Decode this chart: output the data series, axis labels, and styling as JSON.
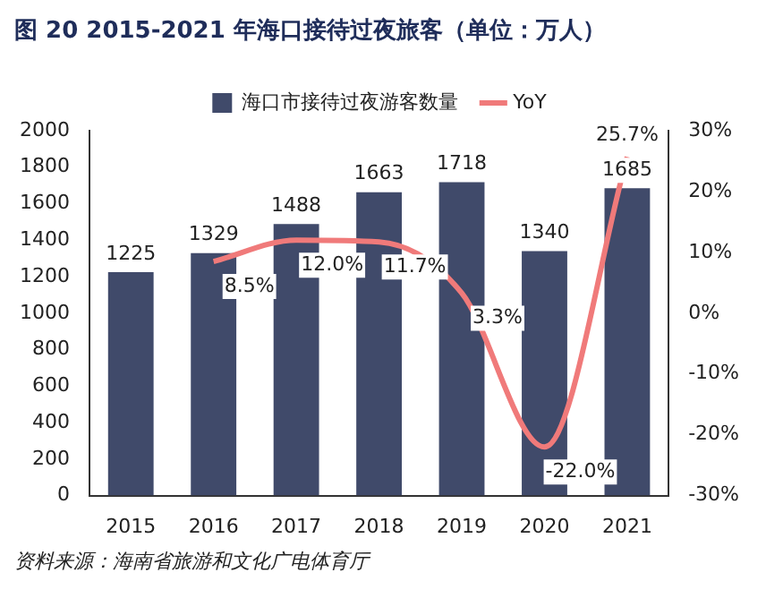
{
  "chart_data": {
    "type": "bar",
    "title": "图 20 2015-2021 年海口接待过夜旅客（单位：万人）",
    "categories": [
      "2015",
      "2016",
      "2017",
      "2018",
      "2019",
      "2020",
      "2021"
    ],
    "series": [
      {
        "name": "海口市接待过夜游客数量",
        "color": "#404a6a",
        "values": [
          1225,
          1329,
          1488,
          1663,
          1718,
          1340,
          1685
        ]
      },
      {
        "name": "YoY",
        "type": "line",
        "axis": "y2",
        "color": "#f07a7a",
        "values": [
          null,
          8.5,
          12.0,
          11.7,
          3.3,
          -22.0,
          25.7
        ],
        "value_labels": [
          null,
          "8.5%",
          "12.0%",
          "11.7%",
          "3.3%",
          "-22.0%",
          "25.7%"
        ]
      }
    ],
    "data_labels": true,
    "marker": "none",
    "line_style": "solid",
    "legend": "top",
    "grid": false,
    "ylim": [
      0,
      2000
    ],
    "yticks": [
      0,
      200,
      400,
      600,
      800,
      1000,
      1200,
      1400,
      1600,
      1800,
      2000
    ],
    "y2lim": [
      -30,
      30
    ],
    "y2ticks": [
      {
        "value": -30,
        "label": "-30%"
      },
      {
        "value": -20,
        "label": "-20%"
      },
      {
        "value": -10,
        "label": "-10%"
      },
      {
        "value": 0,
        "label": "0%"
      },
      {
        "value": 10,
        "label": "10%"
      },
      {
        "value": 20,
        "label": "20%"
      },
      {
        "value": 30,
        "label": "30%"
      }
    ],
    "annotations": [
      "资料来源：海南省旅游和文化广电体育厅"
    ]
  }
}
